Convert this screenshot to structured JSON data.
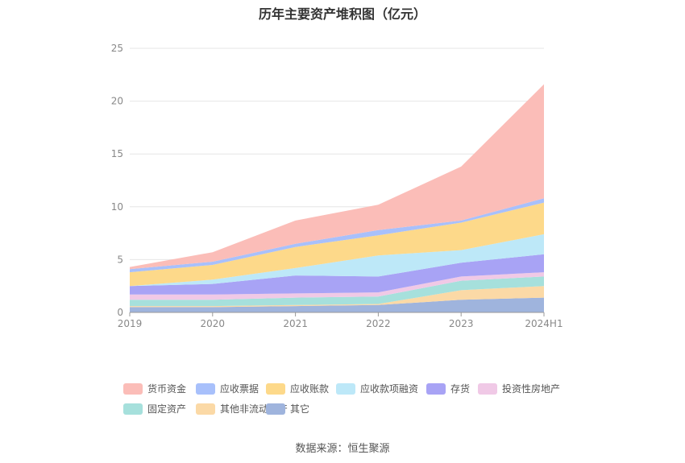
{
  "source_label": "数据来源：恒生聚源",
  "chart_data": {
    "type": "area",
    "stacked": true,
    "title": "历年主要资产堆积图（亿元）",
    "categories": [
      "2019",
      "2020",
      "2021",
      "2022",
      "2023",
      "2024H1"
    ],
    "ylim": [
      0,
      25
    ],
    "yticks": [
      0,
      5,
      10,
      15,
      20,
      25
    ],
    "grid": true,
    "legend_position": "bottom",
    "series": [
      {
        "name": "其它",
        "color": "#9fb4dd",
        "values": [
          0.5,
          0.5,
          0.6,
          0.7,
          1.2,
          1.4
        ]
      },
      {
        "name": "其他非流动资产",
        "color": "#fbd9a6",
        "values": [
          0.1,
          0.1,
          0.1,
          0.1,
          0.9,
          1.1
        ]
      },
      {
        "name": "固定资产",
        "color": "#a6e0dc",
        "values": [
          0.6,
          0.6,
          0.7,
          0.7,
          0.9,
          0.9
        ]
      },
      {
        "name": "投资性房地产",
        "color": "#f0c9e6",
        "values": [
          0.5,
          0.5,
          0.4,
          0.4,
          0.4,
          0.4
        ]
      },
      {
        "name": "存货",
        "color": "#a8a3f5",
        "values": [
          0.8,
          1.0,
          1.7,
          1.5,
          1.3,
          1.7
        ]
      },
      {
        "name": "应收款项融资",
        "color": "#bde8f8",
        "values": [
          0.0,
          0.4,
          0.7,
          2.0,
          1.2,
          1.9
        ]
      },
      {
        "name": "应收账款",
        "color": "#fdd98a",
        "values": [
          1.3,
          1.4,
          2.0,
          1.9,
          2.6,
          3.0
        ]
      },
      {
        "name": "应收票据",
        "color": "#a8c0fb",
        "values": [
          0.3,
          0.3,
          0.3,
          0.5,
          0.2,
          0.4
        ]
      },
      {
        "name": "货币资金",
        "color": "#fbbdb8",
        "values": [
          0.2,
          0.9,
          2.2,
          2.4,
          5.1,
          10.8
        ]
      }
    ]
  }
}
